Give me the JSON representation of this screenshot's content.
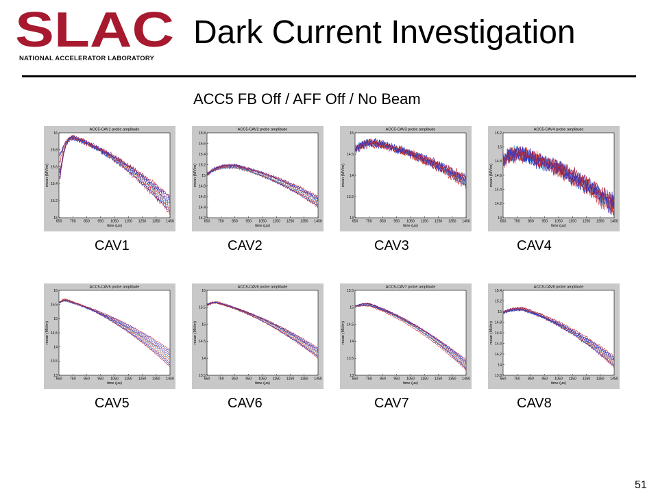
{
  "logo": {
    "text": "SLAC",
    "subtext": "NATIONAL ACCELERATOR LABORATORY",
    "color": "#a6192e"
  },
  "title": "Dark Current Investigation",
  "subtitle": "ACC5 FB Off / AFF Off / No Beam",
  "page_number": "51",
  "colors": {
    "red": "#c0272d",
    "blue": "#1f3bd6",
    "purple": "#7b1f6e",
    "orange": "#e8641e",
    "cyan": "#2a9fd6"
  },
  "chart_data": [
    {
      "type": "line",
      "label": "CAV1",
      "title": "ACC5-CAV1 probe amplitude",
      "xlabel": "time (μs)",
      "ylabel": "mean (MV/m)",
      "xlim": [
        650,
        1450
      ],
      "ylim": [
        15,
        16
      ],
      "xticks": [
        650,
        750,
        850,
        950,
        1050,
        1150,
        1250,
        1350,
        1450
      ],
      "yticks": [
        15,
        15.2,
        15.4,
        15.6,
        15.8,
        16
      ],
      "ytick_labels": [
        "15",
        "15.2",
        "15.4",
        "15.6",
        "15.8",
        "16"
      ],
      "start": [
        15.0,
        15.78
      ],
      "peak_x": 760,
      "peak_y": 15.94,
      "end_range": [
        15.05,
        15.25
      ],
      "noise": 0.015
    },
    {
      "type": "line",
      "label": "CAV2",
      "title": "ACC5-CAV2 probe amplitude",
      "xlabel": "time (μs)",
      "ylabel": "mean (MV/m)",
      "xlim": [
        650,
        1450
      ],
      "ylim": [
        14.2,
        15.8
      ],
      "xticks": [
        650,
        750,
        850,
        950,
        1050,
        1150,
        1250,
        1350,
        1450
      ],
      "yticks": [
        14.2,
        14.4,
        14.6,
        14.8,
        15,
        15.2,
        15.4,
        15.6,
        15.8
      ],
      "ytick_labels": [
        "14.2",
        "14.4",
        "14.6",
        "14.8",
        "15",
        "15.2",
        "15.4",
        "15.6",
        "15.8"
      ],
      "start": [
        14.95,
        15.05
      ],
      "peak_x": 850,
      "peak_y": 15.17,
      "end_range": [
        14.4,
        14.6
      ],
      "noise": 0.015
    },
    {
      "type": "line",
      "label": "CAV3",
      "title": "ACC5-CAV3 probe amplitude",
      "xlabel": "time (μs)",
      "ylabel": "mean (MV/m)",
      "xlim": [
        650,
        1450
      ],
      "ylim": [
        13,
        15
      ],
      "xticks": [
        650,
        750,
        850,
        950,
        1050,
        1150,
        1250,
        1350,
        1450
      ],
      "yticks": [
        13,
        13.5,
        14,
        14.5,
        15
      ],
      "ytick_labels": [
        "13",
        "13.5",
        "14",
        "14.5",
        "15"
      ],
      "start": [
        14.5,
        14.65
      ],
      "peak_x": 800,
      "peak_y": 14.75,
      "end_range": [
        13.75,
        13.95
      ],
      "noise": 0.06
    },
    {
      "type": "line",
      "label": "CAV4",
      "title": "ACC5-CAV4 probe amplitude",
      "xlabel": "time (μs)",
      "ylabel": "mean (MV/m)",
      "xlim": [
        650,
        1450
      ],
      "ylim": [
        14,
        15.2
      ],
      "xticks": [
        650,
        750,
        850,
        950,
        1050,
        1150,
        1250,
        1350,
        1450
      ],
      "yticks": [
        14,
        14.2,
        14.4,
        14.6,
        14.8,
        15,
        15.2
      ],
      "ytick_labels": [
        "14",
        "14.2",
        "14.4",
        "14.6",
        "14.8",
        "15",
        "15.2"
      ],
      "start": [
        14.75,
        14.85
      ],
      "peak_x": 780,
      "peak_y": 14.9,
      "end_range": [
        14.1,
        14.25
      ],
      "noise": 0.07
    },
    {
      "type": "line",
      "label": "CAV5",
      "title": "ACC5-CAV5 probe amplitude",
      "xlabel": "time (μs)",
      "ylabel": "mean (MV/m)",
      "xlim": [
        650,
        1450
      ],
      "ylim": [
        13,
        16
      ],
      "xticks": [
        650,
        750,
        850,
        950,
        1050,
        1150,
        1250,
        1350,
        1450
      ],
      "yticks": [
        13,
        13.5,
        14,
        14.5,
        15,
        15.5,
        16
      ],
      "ytick_labels": [
        "13",
        "13.5",
        "14",
        "14.5",
        "15",
        "15.5",
        "16"
      ],
      "start": [
        15.5,
        15.6
      ],
      "peak_x": 700,
      "peak_y": 15.65,
      "end_range": [
        13.3,
        13.9
      ],
      "noise": 0.012
    },
    {
      "type": "line",
      "label": "CAV6",
      "title": "ACC5-CAV6 probe amplitude",
      "xlabel": "time (μs)",
      "ylabel": "mean (MV/m)",
      "xlim": [
        650,
        1450
      ],
      "ylim": [
        13.5,
        16
      ],
      "xticks": [
        650,
        750,
        850,
        950,
        1050,
        1150,
        1250,
        1350,
        1450
      ],
      "yticks": [
        13.5,
        14,
        14.5,
        15,
        15.5,
        16
      ],
      "ytick_labels": [
        "13.5",
        "14",
        "14.5",
        "15",
        "15.5",
        "16"
      ],
      "start": [
        15.5,
        15.6
      ],
      "peak_x": 720,
      "peak_y": 15.65,
      "end_range": [
        14.0,
        14.3
      ],
      "noise": 0.012
    },
    {
      "type": "line",
      "label": "CAV7",
      "title": "ACC5-CAV7 probe amplitude",
      "xlabel": "time (μs)",
      "ylabel": "mean (MV/m)",
      "xlim": [
        650,
        1450
      ],
      "ylim": [
        13,
        15.5
      ],
      "xticks": [
        650,
        750,
        850,
        950,
        1050,
        1150,
        1250,
        1350,
        1450
      ],
      "yticks": [
        13,
        13.5,
        14,
        14.5,
        15,
        15.5
      ],
      "ytick_labels": [
        "13",
        "13.5",
        "14",
        "14.5",
        "15",
        "15.5"
      ],
      "start": [
        15.0,
        15.05
      ],
      "peak_x": 750,
      "peak_y": 15.08,
      "end_range": [
        13.15,
        13.45
      ],
      "noise": 0.012
    },
    {
      "type": "line",
      "label": "CAV8",
      "title": "ACC5-CAV8 probe amplitude",
      "xlabel": "time (μs)",
      "ylabel": "mean (MV/m)",
      "xlim": [
        650,
        1450
      ],
      "ylim": [
        13.8,
        15.4
      ],
      "xticks": [
        650,
        750,
        850,
        950,
        1050,
        1150,
        1250,
        1350,
        1450
      ],
      "yticks": [
        13.8,
        14,
        14.2,
        14.4,
        14.6,
        14.8,
        15,
        15.2,
        15.4
      ],
      "ytick_labels": [
        "13.8",
        "14",
        "14.2",
        "14.4",
        "14.6",
        "14.8",
        "15",
        "15.2",
        "15.4"
      ],
      "start": [
        14.95,
        15.0
      ],
      "peak_x": 790,
      "peak_y": 15.05,
      "end_range": [
        13.95,
        14.15
      ],
      "noise": 0.015
    }
  ]
}
